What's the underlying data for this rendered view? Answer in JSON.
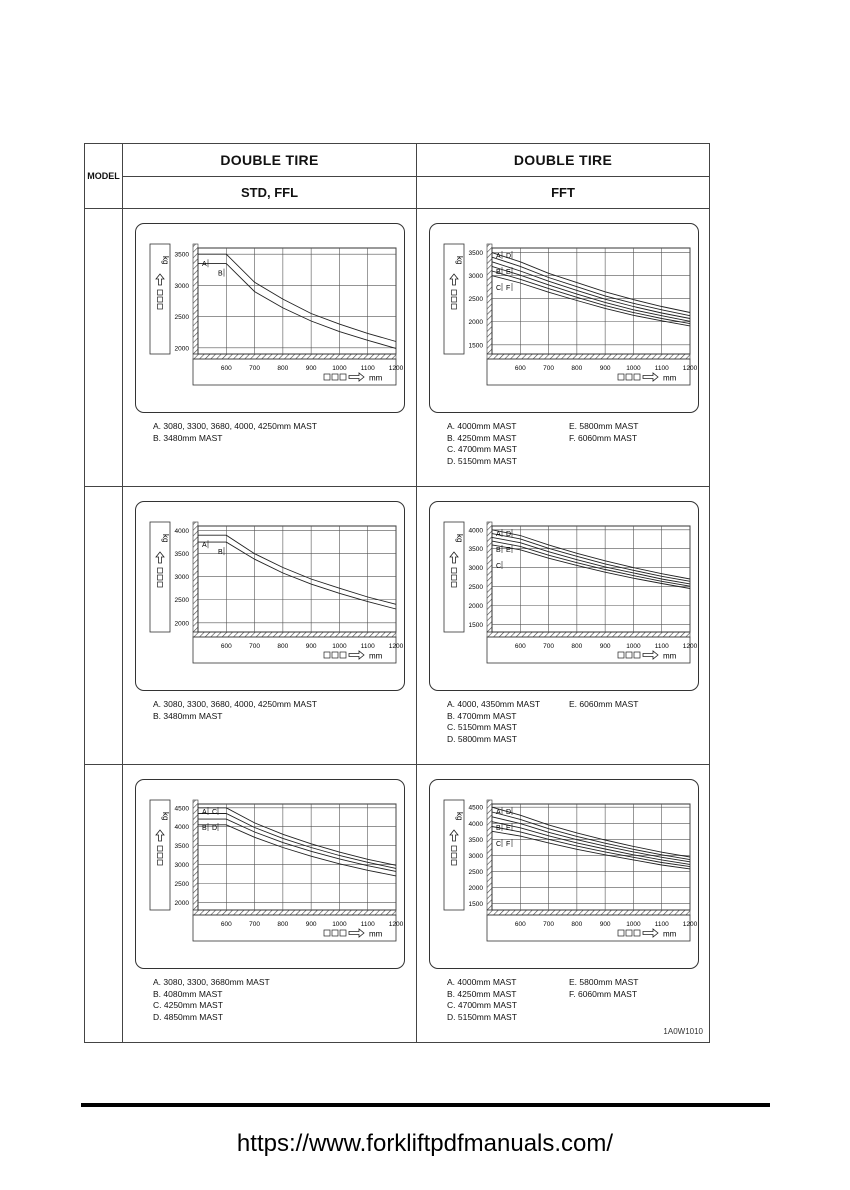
{
  "table": {
    "model_label": "MODEL",
    "columns": [
      {
        "title": "DOUBLE TIRE",
        "subtitle": "STD, FFL"
      },
      {
        "title": "DOUBLE TIRE",
        "subtitle": "FFT"
      }
    ],
    "doc_code": "1A0W1010"
  },
  "footer": {
    "url": "https://www.forkliftpdfmanuals.com/"
  },
  "chart_data": [
    {
      "type": "line",
      "id": "r1c1",
      "ylabel": "kg",
      "xlabel": "mm",
      "x_ticks": [
        "600",
        "700",
        "800",
        "900",
        "1000",
        "1100",
        "1200"
      ],
      "y_ticks": [
        "2000",
        "2500",
        "3000",
        "3500"
      ],
      "ylim": [
        1900,
        3600
      ],
      "xlim": [
        500,
        1200
      ],
      "x": [
        500,
        600,
        700,
        800,
        900,
        1000,
        1100,
        1200
      ],
      "series": [
        {
          "name": "A",
          "values": [
            3500,
            3500,
            3050,
            2780,
            2550,
            2380,
            2230,
            2100
          ]
        },
        {
          "name": "B",
          "values": [
            3350,
            3350,
            2900,
            2640,
            2430,
            2260,
            2120,
            1990
          ]
        }
      ],
      "markers": [
        "A",
        "B"
      ],
      "notes_left": [
        "A. 3080, 3300, 3680, 4000, 4250mm MAST",
        "B. 3480mm MAST"
      ],
      "notes_right": []
    },
    {
      "type": "line",
      "id": "r1c2",
      "ylabel": "kg",
      "xlabel": "mm",
      "x_ticks": [
        "600",
        "700",
        "800",
        "900",
        "1000",
        "1100",
        "1200"
      ],
      "y_ticks": [
        "1500",
        "2000",
        "2500",
        "3000",
        "3500"
      ],
      "ylim": [
        1300,
        3600
      ],
      "xlim": [
        500,
        1200
      ],
      "x": [
        500,
        600,
        700,
        800,
        900,
        1000,
        1100,
        1200
      ],
      "series": [
        {
          "name": "A",
          "values": [
            3500,
            3300,
            3050,
            2850,
            2650,
            2480,
            2330,
            2200
          ]
        },
        {
          "name": "B",
          "values": [
            3400,
            3200,
            2960,
            2760,
            2560,
            2400,
            2260,
            2130
          ]
        },
        {
          "name": "C",
          "values": [
            3300,
            3100,
            2880,
            2680,
            2490,
            2330,
            2190,
            2070
          ]
        },
        {
          "name": "D",
          "values": [
            3200,
            3010,
            2800,
            2600,
            2420,
            2260,
            2130,
            2010
          ]
        },
        {
          "name": "E",
          "values": [
            3100,
            2920,
            2720,
            2530,
            2350,
            2200,
            2070,
            1960
          ]
        },
        {
          "name": "F",
          "values": [
            3000,
            2840,
            2640,
            2460,
            2290,
            2140,
            2020,
            1910
          ]
        }
      ],
      "markers": [
        "A",
        "B",
        "C",
        "D",
        "E",
        "F"
      ],
      "notes_left": [
        "A. 4000mm MAST",
        "B. 4250mm MAST",
        "C. 4700mm MAST",
        "D. 5150mm MAST"
      ],
      "notes_right": [
        "E. 5800mm MAST",
        "F. 6060mm MAST"
      ]
    },
    {
      "type": "line",
      "id": "r2c1",
      "ylabel": "kg",
      "xlabel": "mm",
      "x_ticks": [
        "600",
        "700",
        "800",
        "900",
        "1000",
        "1100",
        "1200"
      ],
      "y_ticks": [
        "2000",
        "2500",
        "3000",
        "3500",
        "4000"
      ],
      "ylim": [
        1800,
        4100
      ],
      "xlim": [
        500,
        1200
      ],
      "x": [
        500,
        600,
        700,
        800,
        900,
        1000,
        1100,
        1200
      ],
      "series": [
        {
          "name": "A",
          "values": [
            3900,
            3900,
            3500,
            3200,
            2950,
            2750,
            2560,
            2400
          ]
        },
        {
          "name": "B",
          "values": [
            3750,
            3750,
            3380,
            3080,
            2840,
            2640,
            2460,
            2300
          ]
        }
      ],
      "markers": [
        "A",
        "B"
      ],
      "notes_left": [
        "A. 3080, 3300, 3680, 4000, 4250mm MAST",
        "B. 3480mm MAST"
      ],
      "notes_right": []
    },
    {
      "type": "line",
      "id": "r2c2",
      "ylabel": "kg",
      "xlabel": "mm",
      "x_ticks": [
        "600",
        "700",
        "800",
        "900",
        "1000",
        "1100",
        "1200"
      ],
      "y_ticks": [
        "1500",
        "2000",
        "2500",
        "3000",
        "3500",
        "4000"
      ],
      "ylim": [
        1300,
        4100
      ],
      "xlim": [
        500,
        1200
      ],
      "x": [
        500,
        600,
        700,
        800,
        900,
        1000,
        1100,
        1200
      ],
      "series": [
        {
          "name": "A",
          "values": [
            4000,
            3850,
            3600,
            3380,
            3180,
            3000,
            2840,
            2700
          ]
        },
        {
          "name": "B",
          "values": [
            3900,
            3760,
            3510,
            3300,
            3100,
            2930,
            2770,
            2640
          ]
        },
        {
          "name": "C",
          "values": [
            3800,
            3660,
            3420,
            3210,
            3020,
            2860,
            2700,
            2570
          ]
        },
        {
          "name": "D",
          "values": [
            3700,
            3560,
            3330,
            3130,
            2950,
            2790,
            2640,
            2510
          ]
        },
        {
          "name": "E",
          "values": [
            3600,
            3470,
            3250,
            3060,
            2880,
            2720,
            2580,
            2450
          ]
        }
      ],
      "markers": [
        "A",
        "B",
        "C",
        "D",
        "E"
      ],
      "notes_left": [
        "A. 4000, 4350mm MAST",
        "B. 4700mm MAST",
        "C. 5150mm MAST",
        "D. 5800mm MAST"
      ],
      "notes_right": [
        "E. 6060mm MAST"
      ]
    },
    {
      "type": "line",
      "id": "r3c1",
      "ylabel": "kg",
      "xlabel": "mm",
      "x_ticks": [
        "600",
        "700",
        "800",
        "900",
        "1000",
        "1100",
        "1200"
      ],
      "y_ticks": [
        "2000",
        "2500",
        "3000",
        "3500",
        "4000",
        "4500"
      ],
      "ylim": [
        1800,
        4600
      ],
      "xlim": [
        500,
        1200
      ],
      "x": [
        500,
        600,
        700,
        800,
        900,
        1000,
        1100,
        1200
      ],
      "series": [
        {
          "name": "A",
          "values": [
            4500,
            4500,
            4100,
            3800,
            3550,
            3330,
            3140,
            2980
          ]
        },
        {
          "name": "B",
          "values": [
            4350,
            4350,
            3980,
            3690,
            3450,
            3240,
            3060,
            2900
          ]
        },
        {
          "name": "C",
          "values": [
            4200,
            4200,
            3860,
            3580,
            3350,
            3150,
            2970,
            2820
          ]
        },
        {
          "name": "D",
          "values": [
            4050,
            4050,
            3720,
            3450,
            3220,
            3020,
            2850,
            2700
          ]
        }
      ],
      "markers": [
        "A",
        "B",
        "C",
        "D"
      ],
      "notes_left": [
        "A. 3080, 3300, 3680mm MAST",
        "B. 4080mm MAST",
        "C. 4250mm MAST",
        "D. 4850mm MAST"
      ],
      "notes_right": []
    },
    {
      "type": "line",
      "id": "r3c2",
      "ylabel": "kg",
      "xlabel": "mm",
      "x_ticks": [
        "600",
        "700",
        "800",
        "900",
        "1000",
        "1100",
        "1200"
      ],
      "y_ticks": [
        "1500",
        "2000",
        "2500",
        "3000",
        "3500",
        "4000",
        "4500"
      ],
      "ylim": [
        1300,
        4600
      ],
      "xlim": [
        500,
        1200
      ],
      "x": [
        500,
        600,
        700,
        800,
        900,
        1000,
        1100,
        1200
      ],
      "series": [
        {
          "name": "A",
          "values": [
            4500,
            4250,
            3950,
            3700,
            3480,
            3280,
            3100,
            2950
          ]
        },
        {
          "name": "B",
          "values": [
            4350,
            4120,
            3830,
            3590,
            3380,
            3190,
            3020,
            2870
          ]
        },
        {
          "name": "C",
          "values": [
            4200,
            3990,
            3720,
            3490,
            3290,
            3110,
            2940,
            2800
          ]
        },
        {
          "name": "D",
          "values": [
            4050,
            3860,
            3610,
            3390,
            3200,
            3020,
            2860,
            2720
          ]
        },
        {
          "name": "E",
          "values": [
            3900,
            3730,
            3500,
            3290,
            3110,
            2940,
            2780,
            2650
          ]
        },
        {
          "name": "F",
          "values": [
            3750,
            3600,
            3390,
            3190,
            3020,
            2860,
            2700,
            2580
          ]
        }
      ],
      "markers": [
        "A",
        "B",
        "C",
        "D",
        "E",
        "F"
      ],
      "notes_left": [
        "A. 4000mm MAST",
        "B. 4250mm MAST",
        "C. 4700mm MAST",
        "D. 5150mm MAST"
      ],
      "notes_right": [
        "E. 5800mm MAST",
        "F. 6060mm MAST"
      ]
    }
  ]
}
